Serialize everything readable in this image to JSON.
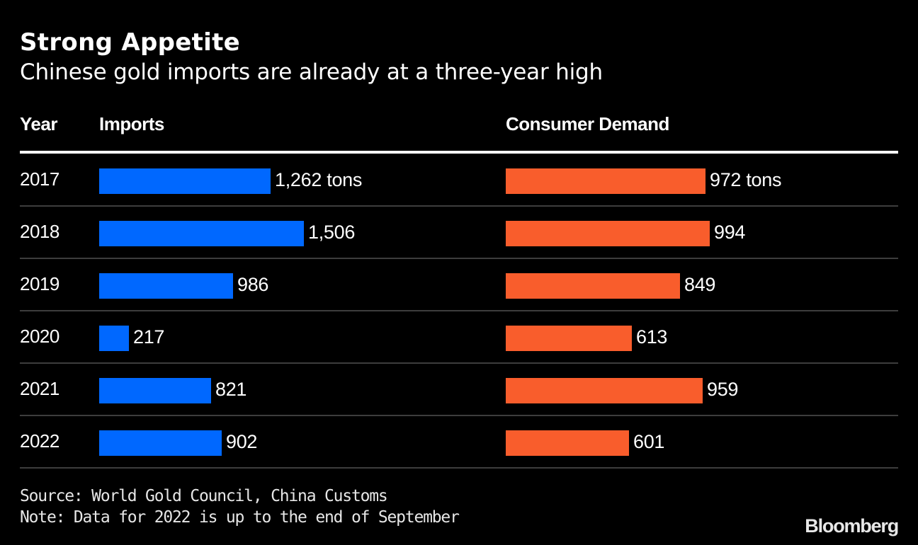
{
  "chart_data": {
    "type": "bar",
    "title": "Strong Appetite",
    "subtitle": "Chinese gold imports are already at a three-year high",
    "columns": {
      "year": "Year",
      "imports": "Imports",
      "consumer_demand": "Consumer Demand"
    },
    "categories": [
      "2017",
      "2018",
      "2019",
      "2020",
      "2021",
      "2022"
    ],
    "series": [
      {
        "name": "Imports",
        "color": "#0068ff",
        "values": [
          1262,
          1506,
          986,
          217,
          821,
          902
        ],
        "labels": [
          "1,262 tons",
          "1,506",
          "986",
          "217",
          "821",
          "902"
        ]
      },
      {
        "name": "Consumer Demand",
        "color": "#f95d2c",
        "values": [
          972,
          994,
          849,
          613,
          959,
          601
        ],
        "labels": [
          "972 tons",
          "994",
          "849",
          "613",
          "959",
          "601"
        ]
      }
    ],
    "unit": "tons",
    "source": "Source: World Gold Council, China Customs",
    "note": "Note: Data for 2022 is up to the end of September",
    "brand": "Bloomberg"
  }
}
